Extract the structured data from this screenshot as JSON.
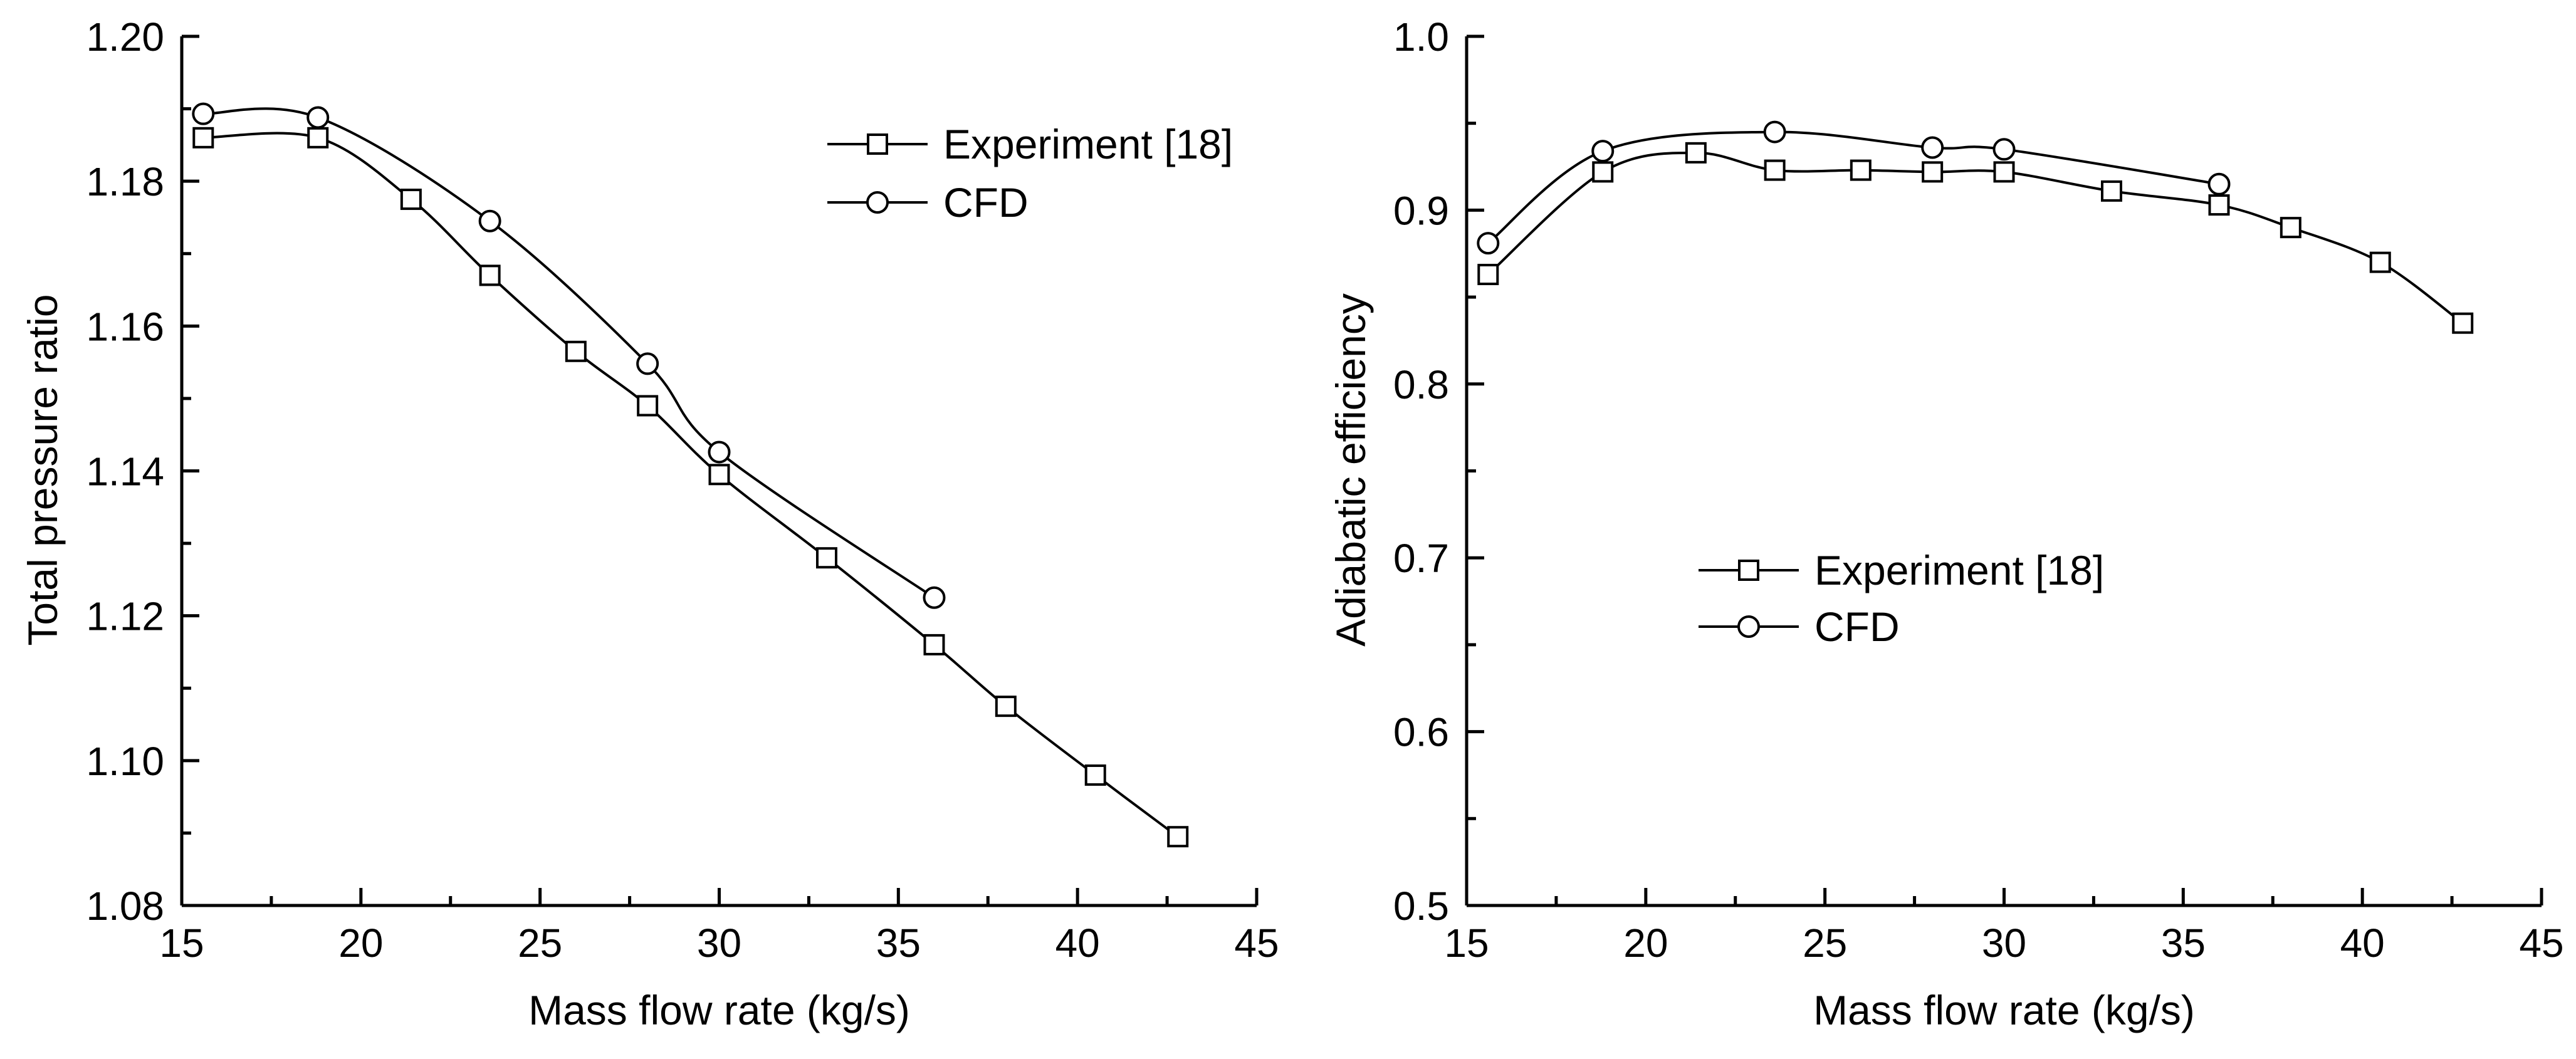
{
  "chart_data": [
    {
      "type": "line",
      "xlabel": "Mass flow rate (kg/s)",
      "ylabel": "Total pressure ratio",
      "xlim": [
        15,
        45
      ],
      "ylim": [
        1.08,
        1.2
      ],
      "xticks": [
        15,
        20,
        25,
        30,
        35,
        40,
        45
      ],
      "xtick_labels": [
        "15",
        "20",
        "25",
        "30",
        "35",
        "40",
        "45"
      ],
      "yticks": [
        1.08,
        1.1,
        1.12,
        1.14,
        1.16,
        1.18,
        1.2
      ],
      "ytick_labels": [
        "1.08",
        "1.10",
        "1.12",
        "1.14",
        "1.16",
        "1.18",
        "1.20"
      ],
      "grid": false,
      "legend_position": "top-right",
      "series": [
        {
          "name": "Experiment [18]",
          "marker": "square",
          "x": [
            15.6,
            18.8,
            21.4,
            23.6,
            26.0,
            28.0,
            30.0,
            33.0,
            36.0,
            38.0,
            40.5,
            42.8
          ],
          "y": [
            1.186,
            1.186,
            1.1775,
            1.167,
            1.1565,
            1.149,
            1.1395,
            1.128,
            1.116,
            1.1075,
            1.098,
            1.0895
          ]
        },
        {
          "name": "CFD",
          "marker": "circle",
          "x": [
            15.6,
            18.8,
            23.6,
            28.0,
            30.0,
            36.0
          ],
          "y": [
            1.1893,
            1.1888,
            1.1745,
            1.1548,
            1.1426,
            1.1225
          ]
        }
      ]
    },
    {
      "type": "line",
      "xlabel": "Mass flow rate (kg/s)",
      "ylabel": "Adiabatic efficiency",
      "xlim": [
        15,
        45
      ],
      "ylim": [
        0.5,
        1.0
      ],
      "xticks": [
        15,
        20,
        25,
        30,
        35,
        40,
        45
      ],
      "xtick_labels": [
        "15",
        "20",
        "25",
        "30",
        "35",
        "40",
        "45"
      ],
      "yticks": [
        0.5,
        0.6,
        0.7,
        0.8,
        0.9,
        1.0
      ],
      "ytick_labels": [
        "0.5",
        "0.6",
        "0.7",
        "0.8",
        "0.9",
        "1.0"
      ],
      "grid": false,
      "legend_position": "center",
      "series": [
        {
          "name": "Experiment [18]",
          "marker": "square",
          "x": [
            15.6,
            18.8,
            21.4,
            23.6,
            26.0,
            28.0,
            30.0,
            33.0,
            36.0,
            38.0,
            40.5,
            42.8
          ],
          "y": [
            0.863,
            0.922,
            0.933,
            0.923,
            0.923,
            0.922,
            0.922,
            0.911,
            0.903,
            0.89,
            0.87,
            0.835
          ]
        },
        {
          "name": "CFD",
          "marker": "circle",
          "x": [
            15.6,
            18.8,
            23.6,
            28.0,
            30.0,
            36.0
          ],
          "y": [
            0.881,
            0.934,
            0.945,
            0.936,
            0.935,
            0.915
          ]
        }
      ]
    }
  ]
}
